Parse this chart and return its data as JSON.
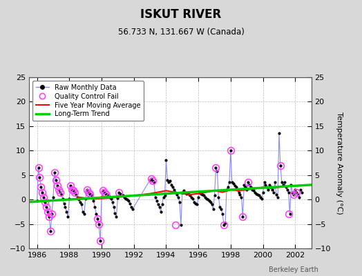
{
  "title": "ISKUT RIVER",
  "subtitle": "56.733 N, 131.667 W (Canada)",
  "ylabel": "Temperature Anomaly (°C)",
  "watermark": "Berkeley Earth",
  "xlim": [
    1985.5,
    2003.0
  ],
  "ylim": [
    -10,
    25
  ],
  "yticks": [
    -10,
    -5,
    0,
    5,
    10,
    15,
    20,
    25
  ],
  "xticks": [
    1986,
    1988,
    1990,
    1992,
    1994,
    1996,
    1998,
    2000,
    2002
  ],
  "background_color": "#d8d8d8",
  "plot_bg_color": "#ffffff",
  "raw_line_color": "#8888ff",
  "raw_marker_color": "#000000",
  "qc_fail_color": "#ff44ff",
  "moving_avg_color": "#ff0000",
  "trend_color": "#00cc00",
  "raw_x": [
    1986.0,
    1986.083,
    1986.167,
    1986.25,
    1986.333,
    1986.417,
    1986.5,
    1986.583,
    1986.667,
    1986.75,
    1986.833,
    1986.917,
    1987.0,
    1987.083,
    1987.167,
    1987.25,
    1987.333,
    1987.417,
    1987.5,
    1987.583,
    1987.667,
    1987.75,
    1987.833,
    1987.917,
    1988.0,
    1988.083,
    1988.167,
    1988.25,
    1988.333,
    1988.417,
    1988.5,
    1988.583,
    1988.667,
    1988.75,
    1988.833,
    1988.917,
    1989.0,
    1989.083,
    1989.167,
    1989.25,
    1989.333,
    1989.417,
    1989.5,
    1989.583,
    1989.667,
    1989.75,
    1989.833,
    1989.917,
    1990.0,
    1990.083,
    1990.167,
    1990.25,
    1990.333,
    1990.417,
    1990.5,
    1990.583,
    1990.667,
    1990.75,
    1990.833,
    1990.917,
    1991.0,
    1991.083,
    1991.167,
    1991.25,
    1991.333,
    1991.417,
    1991.5,
    1991.583,
    1991.667,
    1991.75,
    1991.833,
    1991.917,
    1993.0,
    1993.083,
    1993.167,
    1993.25,
    1993.333,
    1993.417,
    1993.5,
    1993.583,
    1993.667,
    1993.75,
    1993.833,
    1993.917,
    1994.0,
    1994.083,
    1994.167,
    1994.25,
    1994.333,
    1994.417,
    1994.5,
    1994.583,
    1994.667,
    1994.75,
    1994.833,
    1994.917,
    1995.0,
    1995.083,
    1995.167,
    1995.25,
    1995.333,
    1995.417,
    1995.5,
    1995.583,
    1995.667,
    1995.75,
    1995.833,
    1995.917,
    1996.0,
    1996.083,
    1996.167,
    1996.25,
    1996.333,
    1996.417,
    1996.5,
    1996.583,
    1996.667,
    1996.75,
    1996.833,
    1996.917,
    1997.0,
    1997.083,
    1997.167,
    1997.25,
    1997.333,
    1997.417,
    1997.5,
    1997.583,
    1997.667,
    1997.75,
    1997.833,
    1997.917,
    1998.0,
    1998.083,
    1998.167,
    1998.25,
    1998.333,
    1998.417,
    1998.5,
    1998.583,
    1998.667,
    1998.75,
    1998.833,
    1998.917,
    1999.0,
    1999.083,
    1999.167,
    1999.25,
    1999.333,
    1999.417,
    1999.5,
    1999.583,
    1999.667,
    1999.75,
    1999.833,
    1999.917,
    2000.0,
    2000.083,
    2000.167,
    2000.25,
    2000.333,
    2000.417,
    2000.5,
    2000.583,
    2000.667,
    2000.75,
    2000.833,
    2000.917,
    2001.0,
    2001.083,
    2001.167,
    2001.25,
    2001.333,
    2001.417,
    2001.5,
    2001.583,
    2001.667,
    2001.75,
    2001.833,
    2001.917,
    2002.0,
    2002.083,
    2002.167,
    2002.25,
    2002.333,
    2002.417
  ],
  "raw_y": [
    -0.3,
    6.5,
    4.5,
    2.5,
    1.5,
    0.5,
    -0.5,
    -1.5,
    -2.5,
    -3.5,
    -6.5,
    -3.0,
    0.5,
    5.5,
    4.0,
    2.8,
    2.0,
    1.5,
    1.0,
    0.2,
    -0.8,
    -1.5,
    -2.5,
    -3.5,
    0.2,
    2.8,
    2.0,
    1.8,
    1.5,
    1.0,
    0.5,
    0.0,
    -0.5,
    -1.0,
    -2.5,
    -3.0,
    0.1,
    2.0,
    1.5,
    1.2,
    1.0,
    0.8,
    -0.2,
    -1.5,
    -3.0,
    -4.0,
    -5.0,
    -8.5,
    0.5,
    1.8,
    1.5,
    1.2,
    1.0,
    0.8,
    0.5,
    0.2,
    -0.5,
    -1.5,
    -2.8,
    -3.5,
    0.3,
    1.5,
    1.2,
    1.0,
    0.8,
    0.5,
    0.2,
    0.0,
    -0.3,
    -0.8,
    -1.5,
    -2.0,
    4.0,
    4.2,
    3.8,
    3.5,
    0.5,
    -0.3,
    -1.0,
    -1.5,
    -2.5,
    -1.0,
    0.5,
    0.8,
    8.0,
    4.0,
    3.5,
    3.8,
    3.0,
    2.5,
    2.0,
    1.5,
    1.0,
    0.5,
    -0.5,
    -5.2,
    1.5,
    1.8,
    1.5,
    1.2,
    1.5,
    1.0,
    0.8,
    0.5,
    0.2,
    -0.5,
    -0.8,
    -1.0,
    0.5,
    1.5,
    1.2,
    1.0,
    0.8,
    0.5,
    0.2,
    0.0,
    -0.3,
    -0.5,
    -1.0,
    -2.0,
    0.8,
    6.5,
    5.8,
    0.5,
    -1.5,
    -2.0,
    -3.0,
    -5.2,
    -4.8,
    2.0,
    2.5,
    3.5,
    10.0,
    3.5,
    3.2,
    2.8,
    2.5,
    2.0,
    1.5,
    1.0,
    0.5,
    -3.5,
    3.0,
    2.5,
    2.0,
    3.5,
    3.0,
    2.5,
    2.0,
    1.8,
    1.5,
    1.2,
    1.0,
    0.8,
    0.5,
    0.2,
    1.5,
    3.5,
    3.0,
    2.5,
    2.0,
    3.0,
    2.5,
    2.0,
    1.5,
    3.5,
    1.0,
    0.5,
    13.5,
    7.0,
    3.5,
    3.0,
    3.5,
    2.5,
    2.0,
    1.5,
    -3.0,
    3.0,
    1.5,
    1.0,
    2.0,
    1.5,
    1.0,
    0.5,
    2.0,
    1.5
  ],
  "qc_fail_x": [
    1986.083,
    1986.167,
    1986.25,
    1986.333,
    1986.417,
    1986.5,
    1986.583,
    1986.667,
    1986.75,
    1986.833,
    1986.917,
    1987.083,
    1987.167,
    1987.25,
    1987.333,
    1987.417,
    1988.083,
    1988.167,
    1988.25,
    1988.333,
    1989.083,
    1989.167,
    1989.25,
    1989.75,
    1989.833,
    1989.917,
    1990.083,
    1990.167,
    1990.25,
    1991.083,
    1993.083,
    1993.167,
    1994.583,
    1997.083,
    1997.583,
    1998.0,
    1998.75,
    1999.083,
    2001.083,
    2001.583,
    2001.917,
    2002.083
  ],
  "qc_fail_y": [
    6.5,
    4.5,
    2.5,
    1.5,
    0.5,
    -0.5,
    -1.5,
    -2.5,
    -3.5,
    -6.5,
    -3.0,
    5.5,
    4.0,
    2.8,
    2.0,
    1.5,
    2.8,
    2.0,
    1.8,
    1.5,
    2.0,
    1.5,
    1.2,
    -4.0,
    -5.0,
    -8.5,
    1.8,
    1.5,
    1.2,
    1.5,
    4.2,
    3.8,
    -5.2,
    6.5,
    -5.2,
    10.0,
    -3.5,
    3.5,
    7.0,
    -3.0,
    1.0,
    1.5
  ],
  "trend_x": [
    1985.5,
    2003.0
  ],
  "trend_y": [
    -0.5,
    3.0
  ],
  "moving_avg_x": [
    1988.5,
    1989.0,
    1989.5,
    1990.0,
    1990.5,
    1991.0,
    1991.5,
    1992.0,
    1992.5,
    1993.0,
    1993.5,
    1994.0,
    1994.5,
    1995.0,
    1995.5,
    1996.0,
    1996.5,
    1997.0,
    1997.5,
    1998.0,
    1998.5,
    1999.0,
    1999.5,
    2000.0,
    2000.5,
    2001.0
  ],
  "moving_avg_y": [
    0.5,
    0.3,
    0.1,
    0.2,
    0.3,
    0.5,
    0.6,
    0.8,
    1.0,
    1.2,
    1.5,
    1.8,
    1.5,
    1.2,
    1.0,
    1.2,
    1.5,
    1.8,
    1.5,
    2.0,
    1.8,
    2.0,
    2.2,
    2.5,
    2.3,
    2.5
  ]
}
